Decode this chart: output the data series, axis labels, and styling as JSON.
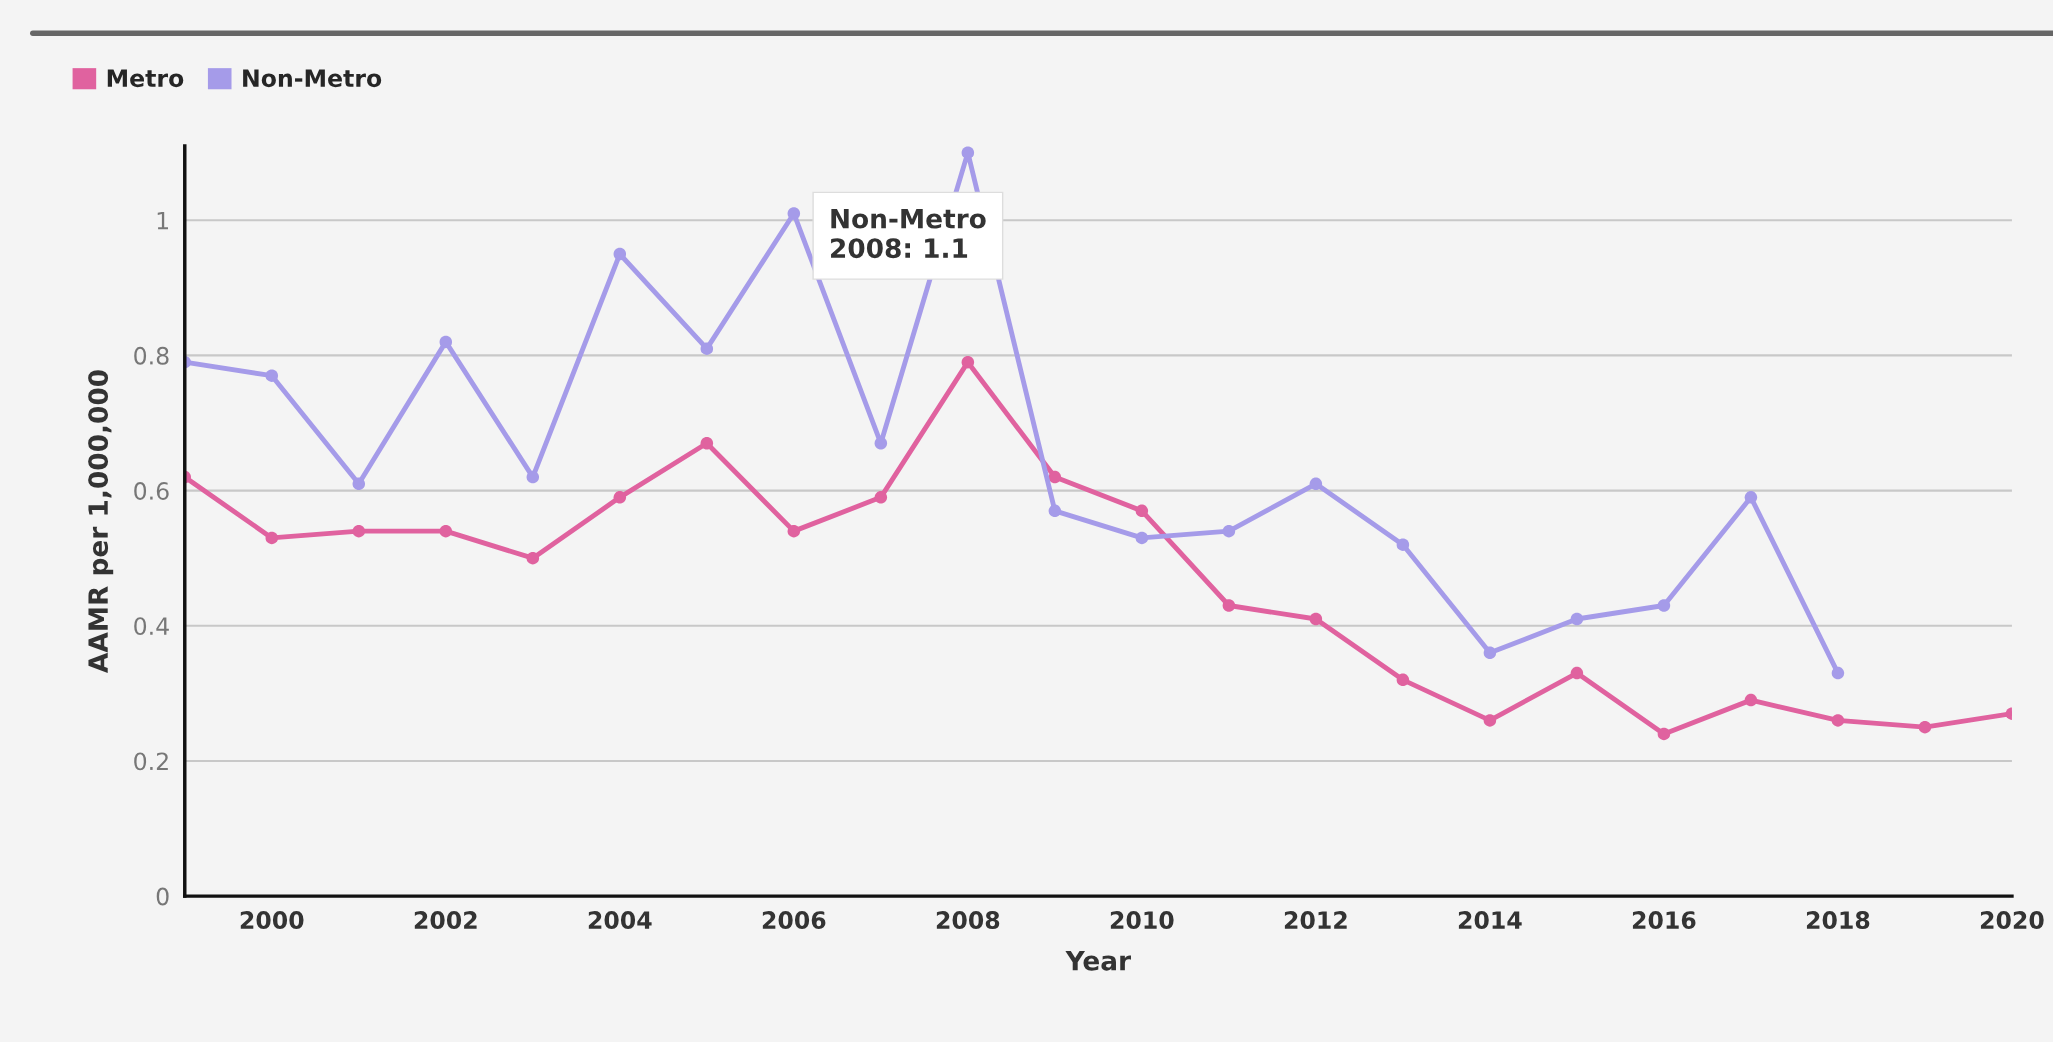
{
  "chart_data": {
    "type": "line",
    "xlabel": "Year",
    "ylabel": "AAMR per 1,000,000",
    "x": [
      1999,
      2000,
      2001,
      2002,
      2003,
      2004,
      2005,
      2006,
      2007,
      2008,
      2009,
      2010,
      2011,
      2012,
      2013,
      2014,
      2015,
      2016,
      2017,
      2018,
      2019,
      2020
    ],
    "series": [
      {
        "name": "Metro",
        "color": "#e0629f",
        "values": [
          0.62,
          0.53,
          0.54,
          0.54,
          0.5,
          0.59,
          0.67,
          0.54,
          0.59,
          0.79,
          0.62,
          0.57,
          0.43,
          0.41,
          0.32,
          0.26,
          0.33,
          0.24,
          0.29,
          0.26,
          0.25,
          0.27
        ]
      },
      {
        "name": "Non-Metro",
        "color": "#a59be9",
        "values": [
          0.79,
          0.77,
          0.61,
          0.82,
          0.62,
          0.95,
          0.81,
          1.01,
          0.67,
          1.1,
          0.57,
          0.53,
          0.54,
          0.61,
          0.52,
          0.36,
          0.41,
          0.43,
          0.59,
          0.33,
          null,
          null
        ]
      }
    ],
    "xlim": [
      1999,
      2020
    ],
    "xticks": [
      2000,
      2002,
      2004,
      2006,
      2008,
      2010,
      2012,
      2014,
      2016,
      2018,
      2020
    ],
    "ylim": [
      0,
      1.11
    ],
    "yticks": [
      {
        "value": 0,
        "label": "0"
      },
      {
        "value": 0.2,
        "label": "0.2"
      },
      {
        "value": 0.4,
        "label": "0.4"
      },
      {
        "value": 0.6,
        "label": "0.6"
      },
      {
        "value": 0.8,
        "label": "0.8"
      },
      {
        "value": 1,
        "label": "1"
      }
    ],
    "grid": "y",
    "legend": "top left",
    "marker": "circle",
    "line_style": "solid",
    "annotations": [
      {
        "text": "Non-Metro\n2008: 1.1",
        "x": 2008,
        "y": 1.1
      }
    ]
  }
}
